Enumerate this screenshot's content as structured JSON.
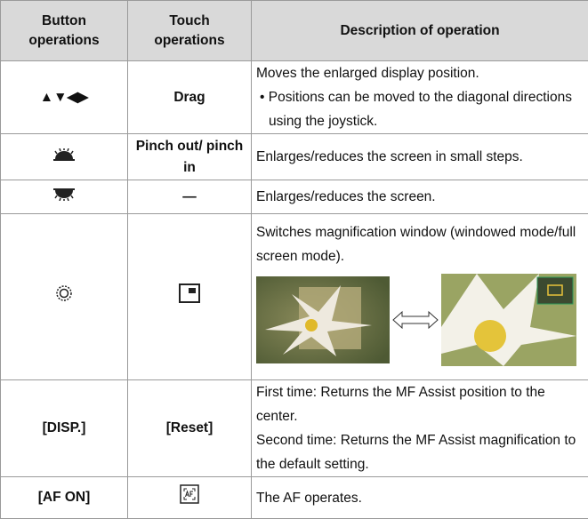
{
  "table": {
    "header": [
      "Button operations",
      "Touch operations",
      "Description of operation"
    ],
    "rows": [
      {
        "button": "▲▼◀▶",
        "touch": "Drag",
        "description": [
          "Moves the enlarged display position."
        ],
        "bullets": [
          "Positions can be moved to the diagonal directions using the joystick."
        ]
      },
      {
        "touch": "Pinch out/ pinch in",
        "description": [
          "Enlarges/reduces the screen in small steps."
        ]
      },
      {
        "touch": "—",
        "description": [
          "Enlarges/reduces the screen."
        ]
      },
      {
        "description": [
          "Switches magnification window (windowed mode/full screen mode)."
        ]
      },
      {
        "button": "[DISP.]",
        "touch": "[Reset]",
        "description": [
          "First time: Returns the MF Assist position to the center.",
          "Second time: Returns the MF Assist magnification to the default setting."
        ]
      },
      {
        "button": "[AF ON]",
        "description": [
          "The AF operates."
        ]
      }
    ]
  }
}
